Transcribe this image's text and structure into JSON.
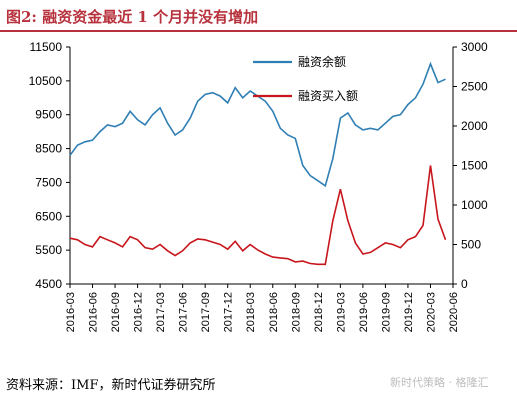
{
  "figure": {
    "title": "图2:    融资资金最近 1 个月并没有增加",
    "source": "资料来源：IMF，新时代证券研究所",
    "watermark": "新时代策略 · 格隆汇"
  },
  "colors": {
    "balance_line": "#2f7fb4",
    "purchase_line": "#c8161d",
    "title_rule": "#b7323c"
  },
  "chart_data": {
    "type": "line",
    "title": "",
    "xlabel": "",
    "ylabel": "",
    "x_ticks": [
      "2016-03",
      "2016-06",
      "2016-09",
      "2016-12",
      "2017-03",
      "2017-06",
      "2017-09",
      "2017-12",
      "2018-03",
      "2018-06",
      "2018-09",
      "2018-12",
      "2019-03",
      "2019-06",
      "2019-09",
      "2019-12",
      "2020-03",
      "2020-06"
    ],
    "left_axis": {
      "ylim": [
        4500,
        11500
      ],
      "ticks": [
        4500,
        5500,
        6500,
        7500,
        8500,
        9500,
        10500,
        11500
      ]
    },
    "right_axis": {
      "ylim": [
        0,
        3000
      ],
      "ticks": [
        0,
        500,
        1000,
        1500,
        2000,
        2500,
        3000
      ]
    },
    "legend_position": "top-center",
    "series": [
      {
        "name": "融资余额",
        "axis": "left",
        "x": [
          "2016-03",
          "2016-04",
          "2016-05",
          "2016-06",
          "2016-07",
          "2016-08",
          "2016-09",
          "2016-10",
          "2016-11",
          "2016-12",
          "2017-01",
          "2017-02",
          "2017-03",
          "2017-04",
          "2017-05",
          "2017-06",
          "2017-07",
          "2017-08",
          "2017-09",
          "2017-10",
          "2017-11",
          "2017-12",
          "2018-01",
          "2018-02",
          "2018-03",
          "2018-04",
          "2018-05",
          "2018-06",
          "2018-07",
          "2018-08",
          "2018-09",
          "2018-10",
          "2018-11",
          "2018-12",
          "2019-01",
          "2019-02",
          "2019-03",
          "2019-04",
          "2019-05",
          "2019-06",
          "2019-07",
          "2019-08",
          "2019-09",
          "2019-10",
          "2019-11",
          "2019-12",
          "2020-01",
          "2020-02",
          "2020-03",
          "2020-04",
          "2020-05"
        ],
        "values": [
          8300,
          8600,
          8700,
          8750,
          9000,
          9200,
          9150,
          9250,
          9600,
          9350,
          9200,
          9500,
          9700,
          9250,
          8900,
          9050,
          9400,
          9900,
          10100,
          10150,
          10050,
          9850,
          10300,
          10000,
          10200,
          10050,
          9900,
          9600,
          9100,
          8900,
          8800,
          8000,
          7700,
          7550,
          7400,
          8200,
          9400,
          9550,
          9200,
          9050,
          9100,
          9050,
          9250,
          9450,
          9500,
          9800,
          10000,
          10400,
          11000,
          10450,
          10550
        ]
      },
      {
        "name": "融资买入额",
        "axis": "right",
        "x": [
          "2016-03",
          "2016-04",
          "2016-05",
          "2016-06",
          "2016-07",
          "2016-08",
          "2016-09",
          "2016-10",
          "2016-11",
          "2016-12",
          "2017-01",
          "2017-02",
          "2017-03",
          "2017-04",
          "2017-05",
          "2017-06",
          "2017-07",
          "2017-08",
          "2017-09",
          "2017-10",
          "2017-11",
          "2017-12",
          "2018-01",
          "2018-02",
          "2018-03",
          "2018-04",
          "2018-05",
          "2018-06",
          "2018-07",
          "2018-08",
          "2018-09",
          "2018-10",
          "2018-11",
          "2018-12",
          "2019-01",
          "2019-02",
          "2019-03",
          "2019-04",
          "2019-05",
          "2019-06",
          "2019-07",
          "2019-08",
          "2019-09",
          "2019-10",
          "2019-11",
          "2019-12",
          "2020-01",
          "2020-02",
          "2020-03",
          "2020-04",
          "2020-05"
        ],
        "values": [
          580,
          560,
          500,
          470,
          600,
          560,
          520,
          470,
          600,
          560,
          460,
          440,
          500,
          420,
          360,
          420,
          520,
          570,
          560,
          530,
          500,
          440,
          540,
          420,
          500,
          430,
          380,
          340,
          330,
          320,
          280,
          290,
          260,
          250,
          250,
          800,
          1200,
          800,
          520,
          380,
          400,
          460,
          520,
          500,
          460,
          560,
          600,
          740,
          1500,
          820,
          560
        ]
      }
    ]
  }
}
